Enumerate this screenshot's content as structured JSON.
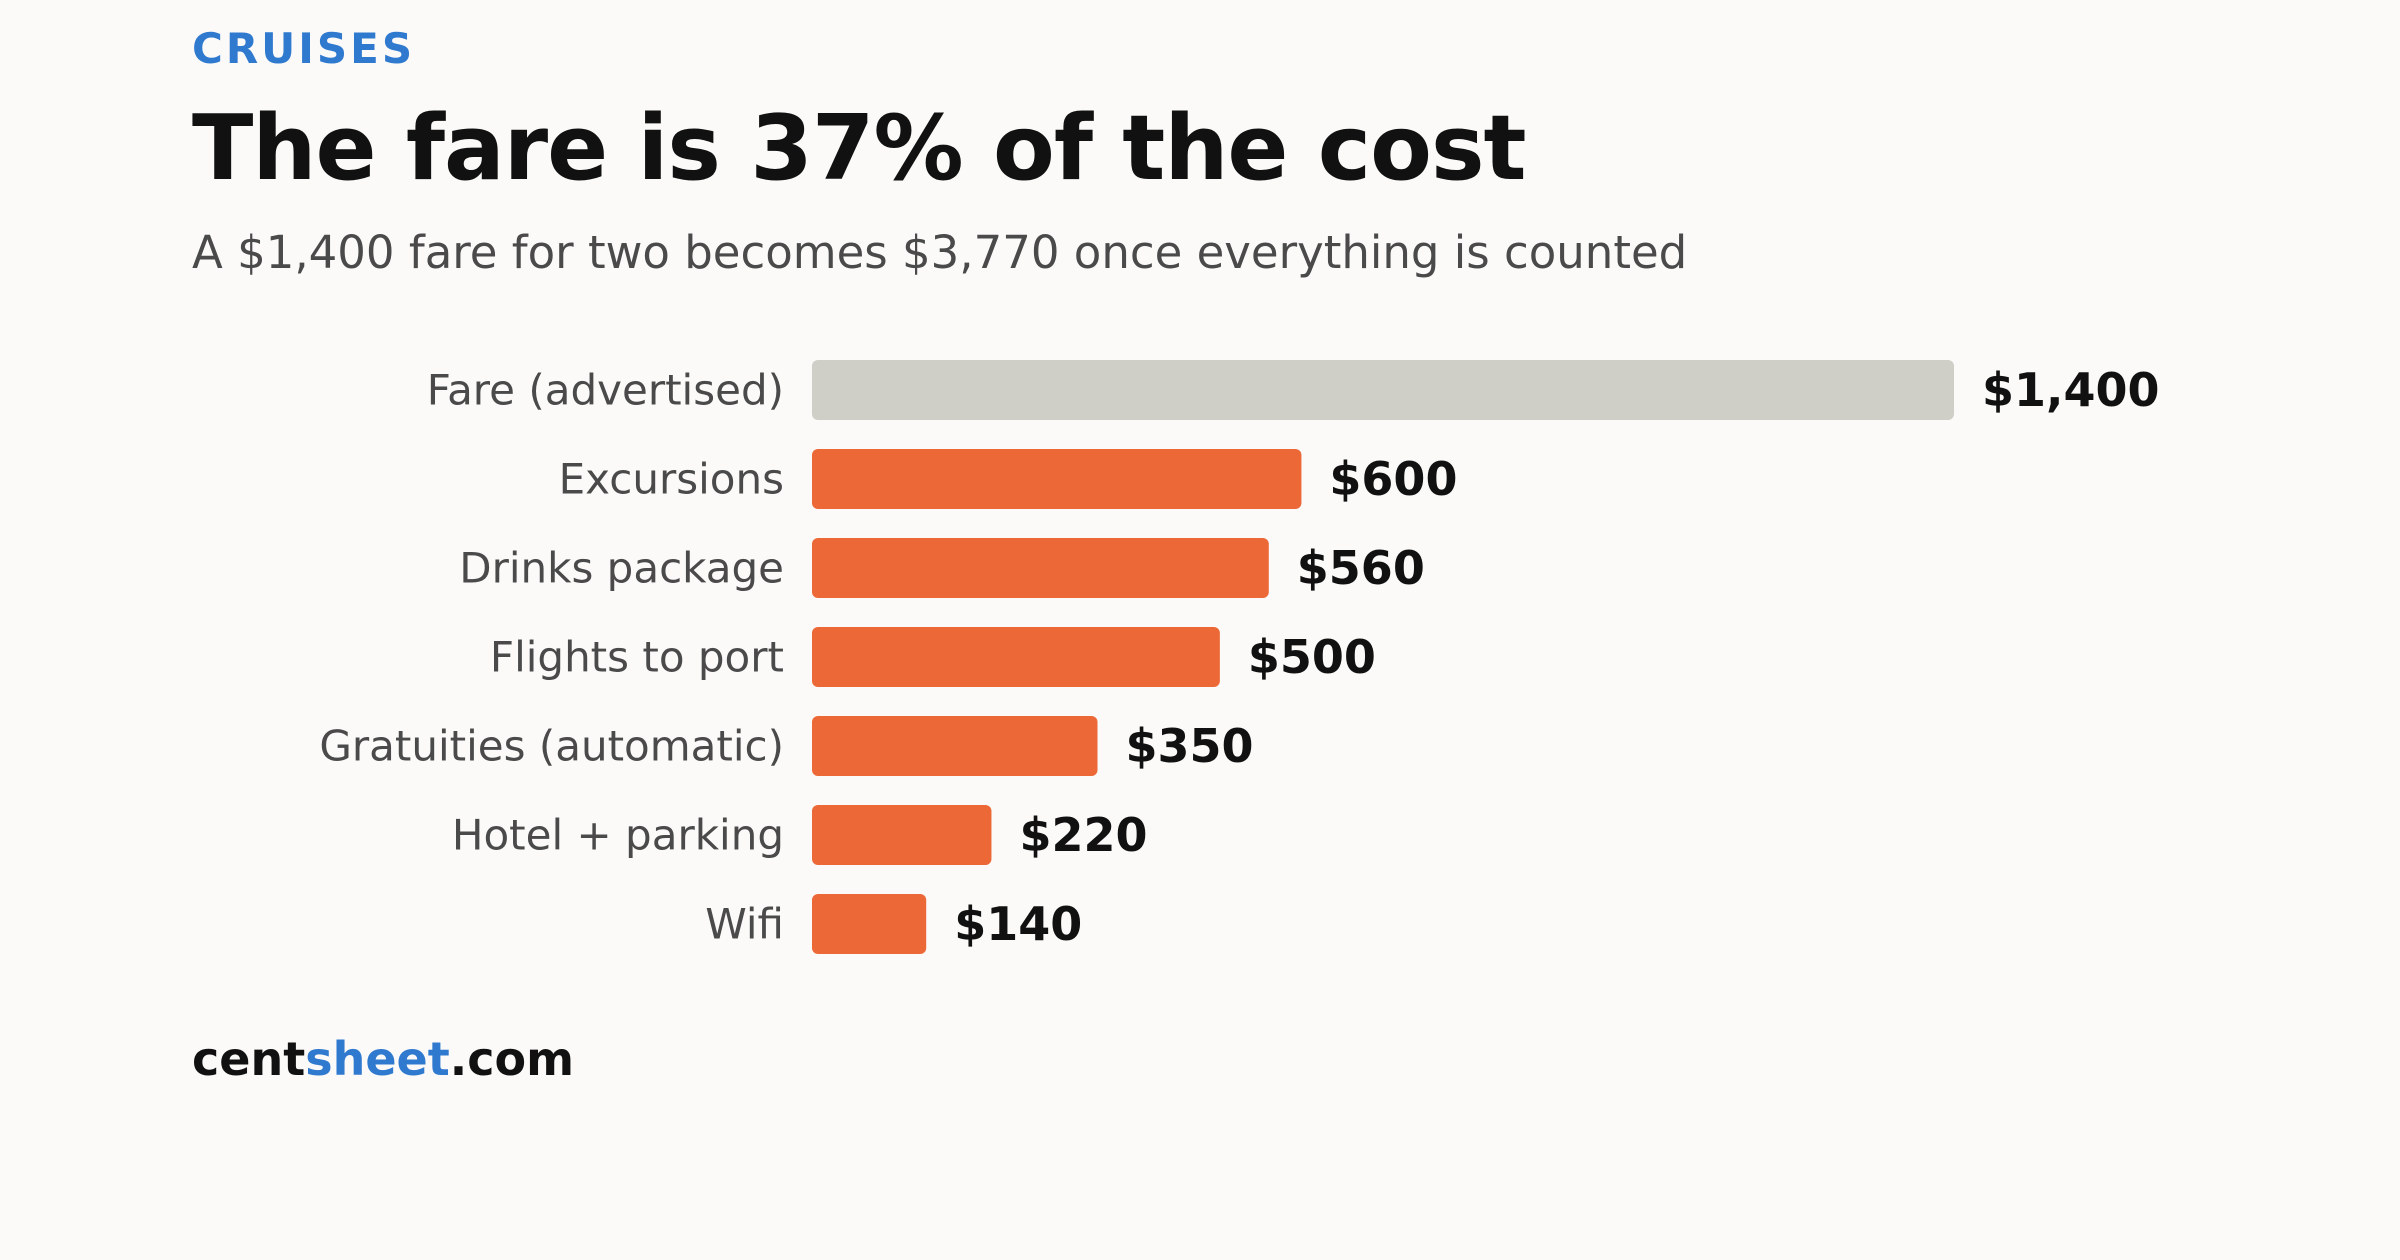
{
  "header": {
    "kicker": "CRUISES",
    "title": "The fare is 37% of the cost",
    "subtitle": "A $1,400 fare for two becomes $3,770 once everything is counted"
  },
  "brand": {
    "part1": "cent",
    "part2": "sheet",
    "part3": ".com"
  },
  "colors": {
    "accent_blue": "#2f79cf",
    "fare_bar": "#cfcec7",
    "cost_bar": "#ec6836",
    "label_text": "#4a4a4a",
    "value_text": "#111111"
  },
  "chart_data": {
    "type": "bar",
    "orientation": "horizontal",
    "categories": [
      "Fare (advertised)",
      "Excursions",
      "Drinks package",
      "Flights to port",
      "Gratuities (automatic)",
      "Hotel + parking",
      "Wifi"
    ],
    "values": [
      1400,
      600,
      560,
      500,
      350,
      220,
      140
    ],
    "value_labels": [
      "$1,400",
      "$600",
      "$560",
      "$500",
      "$350",
      "$220",
      "$140"
    ],
    "highlight_category": "Fare (advertised)",
    "xlim": [
      0,
      1400
    ],
    "grid": false,
    "legend": "none"
  }
}
